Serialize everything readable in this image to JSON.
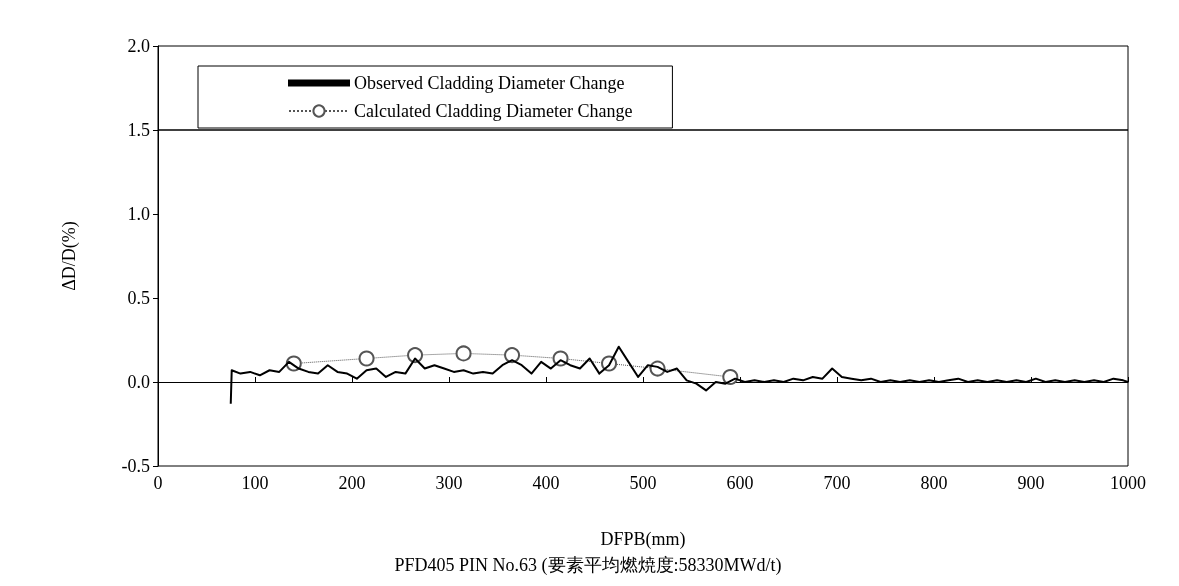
{
  "chart_data": {
    "type": "line",
    "xlabel": "DFPB(mm)",
    "ylabel": "ΔD/D(%)",
    "annotations": [
      "PFD405 PIN No.63 (要素平均燃焼度:58330MWd/t)"
    ],
    "xlim": [
      0,
      1000
    ],
    "xticks": [
      0,
      100,
      200,
      300,
      400,
      500,
      600,
      700,
      800,
      900,
      1000
    ],
    "ylim": [
      -0.5,
      2.0
    ],
    "yticks": [
      {
        "value": -0.5,
        "label": "-0.5"
      },
      {
        "value": 0,
        "label": "0.0"
      },
      {
        "value": 0.5,
        "label": "0.5"
      },
      {
        "value": 1.0,
        "label": "1.0"
      },
      {
        "value": 1.5,
        "label": "1.5"
      },
      {
        "value": 2.0,
        "label": "2.0"
      }
    ],
    "grid": false,
    "legend": "top left",
    "ref_lines": [
      {
        "axis": "y",
        "value": 1.5,
        "label": null,
        "color": "#000000"
      }
    ],
    "series": [
      {
        "name": "Observed Cladding Diameter Change",
        "color": "#000000",
        "marker": "none",
        "line_style": "solid",
        "x": [
          75,
          76,
          85,
          95,
          105,
          115,
          125,
          135,
          145,
          155,
          165,
          175,
          185,
          195,
          205,
          215,
          225,
          235,
          245,
          255,
          265,
          275,
          285,
          295,
          305,
          315,
          325,
          335,
          345,
          355,
          365,
          375,
          385,
          395,
          405,
          415,
          425,
          435,
          445,
          455,
          465,
          475,
          485,
          495,
          505,
          515,
          525,
          535,
          545,
          555,
          565,
          575,
          585,
          595,
          605,
          615,
          625,
          635,
          645,
          655,
          665,
          675,
          685,
          695,
          705,
          715,
          725,
          735,
          745,
          755,
          765,
          775,
          785,
          795,
          805,
          815,
          825,
          835,
          845,
          855,
          865,
          875,
          885,
          895,
          905,
          915,
          925,
          935,
          945,
          955,
          965,
          975,
          985,
          995,
          1000
        ],
        "values": [
          -0.13,
          0.07,
          0.05,
          0.06,
          0.04,
          0.07,
          0.06,
          0.12,
          0.08,
          0.06,
          0.05,
          0.1,
          0.06,
          0.05,
          0.02,
          0.07,
          0.08,
          0.03,
          0.06,
          0.05,
          0.14,
          0.08,
          0.1,
          0.08,
          0.06,
          0.07,
          0.05,
          0.06,
          0.05,
          0.1,
          0.13,
          0.1,
          0.05,
          0.12,
          0.08,
          0.13,
          0.1,
          0.08,
          0.14,
          0.05,
          0.1,
          0.21,
          0.12,
          0.03,
          0.1,
          0.09,
          0.06,
          0.08,
          0.01,
          -0.01,
          -0.05,
          0.0,
          -0.01,
          0.02,
          0.0,
          0.01,
          0.0,
          0.01,
          0.0,
          0.02,
          0.01,
          0.03,
          0.02,
          0.08,
          0.03,
          0.02,
          0.01,
          0.02,
          0.0,
          0.01,
          0.0,
          0.01,
          0.0,
          0.01,
          0.0,
          0.01,
          0.02,
          0.0,
          0.01,
          0.0,
          0.01,
          0.0,
          0.01,
          0.0,
          0.02,
          0.0,
          0.01,
          0.0,
          0.01,
          0.0,
          0.01,
          0.0,
          0.02,
          0.01,
          0.0
        ]
      },
      {
        "name": "Calculated Cladding Diameter Change",
        "color": "#555555",
        "marker": "circle",
        "line_style": "dotted",
        "x": [
          140,
          215,
          265,
          315,
          365,
          415,
          465,
          515,
          590
        ],
        "values": [
          0.11,
          0.14,
          0.16,
          0.17,
          0.16,
          0.14,
          0.11,
          0.08,
          0.03
        ]
      }
    ]
  }
}
